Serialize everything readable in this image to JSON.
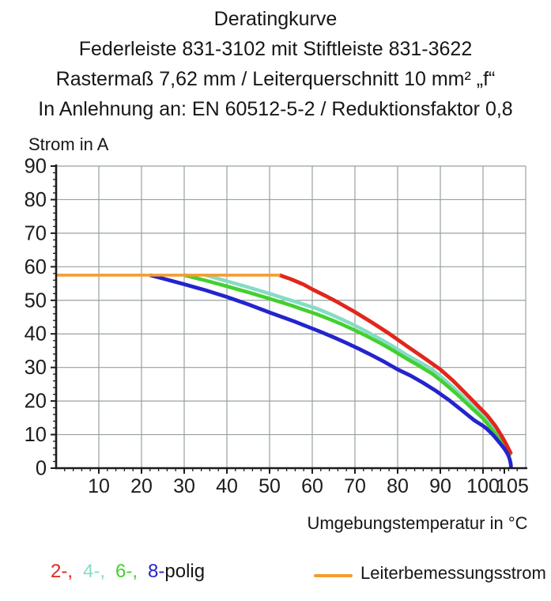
{
  "header": {
    "lines": [
      "Deratingkurve",
      "Federleiste 831-3102 mit Stiftleiste 831-3622",
      "Rastermaß 7,62 mm / Leiterquerschnitt 10 mm² „f“",
      "In Anlehnung an: EN 60512-5-2 / Reduktionsfaktor 0,8"
    ]
  },
  "chart_data": {
    "type": "line",
    "title": "Deratingkurve",
    "xlabel": "Umgebungstemperatur in °C",
    "ylabel": "Strom in A",
    "xlim": [
      0,
      110
    ],
    "ylim": [
      0,
      90
    ],
    "grid": true,
    "grid_color": "#98a0a0",
    "axis_color": "#1c1c1c",
    "x_gridlines": [
      10,
      20,
      30,
      40,
      50,
      60,
      70,
      80,
      90,
      100,
      110
    ],
    "y_gridlines": [
      10,
      20,
      30,
      40,
      50,
      60,
      70,
      80,
      90
    ],
    "x_minor_step": 2,
    "y_minor_step": 2,
    "x_ticks": [
      {
        "value": 10,
        "label": "10"
      },
      {
        "value": 20,
        "label": "20"
      },
      {
        "value": 30,
        "label": "30"
      },
      {
        "value": 40,
        "label": "40"
      },
      {
        "value": 50,
        "label": "50"
      },
      {
        "value": 60,
        "label": "60"
      },
      {
        "value": 70,
        "label": "70"
      },
      {
        "value": 80,
        "label": "80"
      },
      {
        "value": 90,
        "label": "90"
      },
      {
        "value": 100,
        "label": "100"
      },
      {
        "value": 105,
        "label": "105",
        "label_dx": 10
      }
    ],
    "y_ticks": [
      {
        "value": 0,
        "label": "0"
      },
      {
        "value": 10,
        "label": "10"
      },
      {
        "value": 20,
        "label": "20"
      },
      {
        "value": 30,
        "label": "30"
      },
      {
        "value": 40,
        "label": "40"
      },
      {
        "value": 50,
        "label": "50"
      },
      {
        "value": 60,
        "label": "60"
      },
      {
        "value": 70,
        "label": "70"
      },
      {
        "value": 80,
        "label": "80"
      },
      {
        "value": 90,
        "label": "90"
      }
    ],
    "series": [
      {
        "name": "4-polig",
        "color": "#85dcc6",
        "width": 4.6,
        "points": [
          [
            35,
            57.5
          ],
          [
            40,
            55.7
          ],
          [
            45,
            53.9
          ],
          [
            50,
            52.0
          ],
          [
            55,
            50.0
          ],
          [
            58,
            48.8
          ],
          [
            61,
            47.6
          ],
          [
            64,
            46.0
          ],
          [
            67,
            44.3
          ],
          [
            70,
            42.5
          ],
          [
            73,
            40.5
          ],
          [
            76,
            38.4
          ],
          [
            79,
            36.2
          ],
          [
            82,
            33.8
          ],
          [
            85,
            31.7
          ],
          [
            88,
            29.5
          ],
          [
            91,
            26.3
          ],
          [
            94,
            22.9
          ],
          [
            97,
            19.2
          ],
          [
            100,
            15.5
          ],
          [
            102,
            12.4
          ],
          [
            103.5,
            9.8
          ],
          [
            105,
            7.0
          ],
          [
            106,
            5.0
          ],
          [
            106.5,
            4.0
          ]
        ]
      },
      {
        "name": "6-polig",
        "color": "#43d02e",
        "width": 4.6,
        "points": [
          [
            30,
            57.5
          ],
          [
            35,
            55.9
          ],
          [
            40,
            54.2
          ],
          [
            45,
            52.4
          ],
          [
            50,
            50.5
          ],
          [
            55,
            48.5
          ],
          [
            58,
            47.2
          ],
          [
            61,
            45.9
          ],
          [
            64,
            44.4
          ],
          [
            67,
            42.8
          ],
          [
            70,
            41.1
          ],
          [
            73,
            39.2
          ],
          [
            76,
            37.2
          ],
          [
            79,
            35.0
          ],
          [
            82,
            32.7
          ],
          [
            85,
            30.5
          ],
          [
            88,
            28.2
          ],
          [
            91,
            25.2
          ],
          [
            94,
            21.9
          ],
          [
            97,
            18.3
          ],
          [
            100,
            14.8
          ],
          [
            102,
            11.7
          ],
          [
            103.5,
            9.2
          ],
          [
            105,
            6.5
          ],
          [
            106,
            4.6
          ],
          [
            106.5,
            3.7
          ]
        ]
      },
      {
        "name": "2-polig",
        "color": "#e2261b",
        "width": 4.8,
        "points": [
          [
            52.3,
            57.5
          ],
          [
            55,
            56.3
          ],
          [
            58,
            54.7
          ],
          [
            60,
            53.3
          ],
          [
            63,
            51.4
          ],
          [
            66,
            49.4
          ],
          [
            70,
            46.5
          ],
          [
            74,
            43.4
          ],
          [
            78,
            40.1
          ],
          [
            82,
            36.5
          ],
          [
            86,
            33.0
          ],
          [
            90,
            29.4
          ],
          [
            93,
            26.0
          ],
          [
            96,
            22.2
          ],
          [
            99,
            18.3
          ],
          [
            101,
            15.7
          ],
          [
            103,
            12.4
          ],
          [
            104.5,
            9.3
          ],
          [
            105.5,
            7.0
          ],
          [
            106.2,
            5.2
          ],
          [
            106.6,
            4.2
          ]
        ]
      },
      {
        "name": "8-polig",
        "color": "#2424cd",
        "width": 4.8,
        "points": [
          [
            22,
            57.5
          ],
          [
            25,
            56.5
          ],
          [
            30,
            54.8
          ],
          [
            35,
            53.0
          ],
          [
            40,
            51.0
          ],
          [
            45,
            48.8
          ],
          [
            50,
            46.4
          ],
          [
            53,
            45.0
          ],
          [
            56,
            43.6
          ],
          [
            59,
            42.1
          ],
          [
            62,
            40.6
          ],
          [
            65,
            39.0
          ],
          [
            68,
            37.3
          ],
          [
            71,
            35.5
          ],
          [
            74,
            33.6
          ],
          [
            77,
            31.6
          ],
          [
            80,
            29.4
          ],
          [
            83,
            27.6
          ],
          [
            86,
            25.4
          ],
          [
            89,
            23.0
          ],
          [
            92,
            20.3
          ],
          [
            95,
            17.3
          ],
          [
            98,
            14.2
          ],
          [
            100,
            12.6
          ],
          [
            101,
            11.6
          ],
          [
            102.5,
            9.7
          ],
          [
            104,
            7.4
          ],
          [
            105,
            5.8
          ],
          [
            105.6,
            4.6
          ],
          [
            106,
            3.6
          ],
          [
            106.3,
            2.4
          ],
          [
            106.5,
            1.2
          ],
          [
            106.55,
            0
          ]
        ]
      },
      {
        "name": "Leiterbemessungsstrom",
        "color": "#f59c2e",
        "width": 3.6,
        "points": [
          [
            0,
            57.5
          ],
          [
            52.5,
            57.5
          ]
        ]
      }
    ]
  },
  "legend": {
    "poles": [
      {
        "label": "2-,",
        "color": "#e2261b"
      },
      {
        "label": "4-,",
        "color": "#85dcc6"
      },
      {
        "label": "6-,",
        "color": "#43d02e"
      },
      {
        "label": "8-",
        "color": "#2424cd"
      }
    ],
    "suffix": "polig",
    "line": {
      "label": "Leiterbemessungsstrom",
      "color": "#f59c2e"
    }
  }
}
